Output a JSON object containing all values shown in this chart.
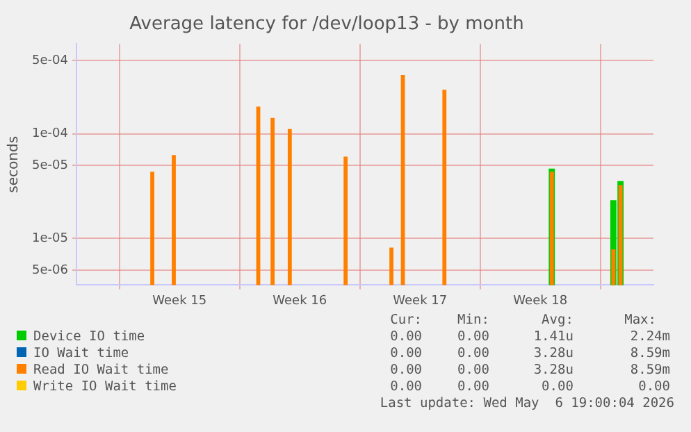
{
  "chart_data": {
    "type": "bar",
    "title": "Average latency for /dev/loop13 - by month",
    "ylabel": "seconds",
    "log": "y",
    "grid": true,
    "legend": "bottom",
    "xlim": [
      "2026-04-03T12:00",
      "2026-05-07T02:00"
    ],
    "xticks": [
      {
        "value": "2026-04-06",
        "label": null
      },
      {
        "value": "2026-04-09T12:00",
        "label": "Week 15"
      },
      {
        "value": "2026-04-13",
        "label": null
      },
      {
        "value": "2026-04-16T12:00",
        "label": "Week 16"
      },
      {
        "value": "2026-04-20",
        "label": null
      },
      {
        "value": "2026-04-23T12:00",
        "label": "Week 17"
      },
      {
        "value": "2026-04-27",
        "label": null
      },
      {
        "value": "2026-04-30T12:00",
        "label": "Week 18"
      },
      {
        "value": "2026-05-04",
        "label": null
      }
    ],
    "ylim": [
      3.6e-06,
      0.00072
    ],
    "yticks": [
      {
        "value": 5e-06,
        "label": "5e-06"
      },
      {
        "value": 1e-05,
        "label": "1e-05"
      },
      {
        "value": 5e-05,
        "label": "5e-05"
      },
      {
        "value": 0.0001,
        "label": "1e-04"
      },
      {
        "value": 0.0005,
        "label": "5e-04"
      }
    ],
    "series": [
      {
        "name": "Device IO time",
        "color": "#00cc00",
        "x": [
          "2026-05-01T04:00",
          "2026-05-04T18:00",
          "2026-05-05T04:00"
        ],
        "values": [
          4.6e-05,
          2.3e-05,
          3.5e-05
        ]
      },
      {
        "name": "IO Wait time",
        "color": "#0066b3"
      },
      {
        "name": "Read IO Wait time",
        "color": "#ff8000",
        "x": [
          "2026-04-07T22:00",
          "2026-04-09T04:00",
          "2026-04-14T02:00",
          "2026-04-14T22:00",
          "2026-04-15T22:00",
          "2026-04-19T04:00",
          "2026-04-21T20:00",
          "2026-04-22T12:00",
          "2026-04-24T22:00",
          "2026-05-01T04:00",
          "2026-05-04T18:00",
          "2026-05-05T04:00"
        ],
        "values": [
          4.3e-05,
          6.2e-05,
          0.00018,
          0.00014,
          0.00011,
          6e-05,
          8.1e-06,
          0.00036,
          0.00026,
          4.3e-05,
          7.8e-06,
          3.2e-05
        ]
      },
      {
        "name": "Write IO Wait time",
        "color": "#ffcc00"
      }
    ],
    "annotations": [
      "Cur:",
      "Min:",
      "Avg:",
      "Max:",
      "0.00",
      "0.00",
      "1.41u",
      "2.24m",
      "0.00",
      "0.00",
      "3.28u",
      "8.59m",
      "0.00",
      "0.00",
      "3.28u",
      "8.59m",
      "0.00",
      "0.00",
      "0.00",
      "0.00",
      "Last update: Wed May  6 19:00:04 2026"
    ]
  }
}
